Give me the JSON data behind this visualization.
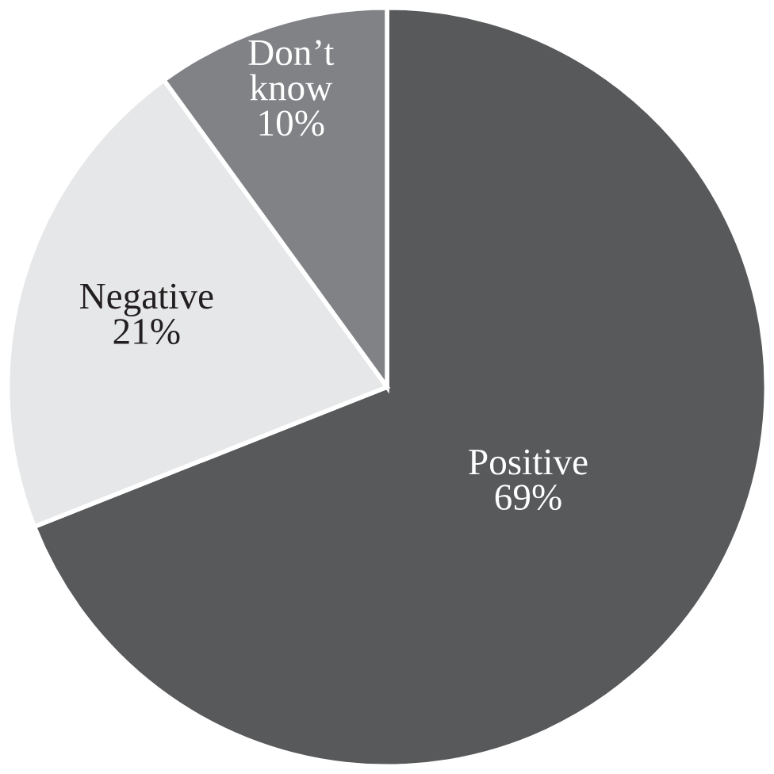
{
  "chart_data": {
    "type": "pie",
    "categories": [
      "Positive",
      "Negative",
      "Don’t know"
    ],
    "values": [
      69,
      21,
      10
    ],
    "value_labels": [
      "69%",
      "21%",
      "10%"
    ],
    "colors": [
      "#58595b",
      "#e6e7e8",
      "#808285"
    ],
    "legend": false
  }
}
